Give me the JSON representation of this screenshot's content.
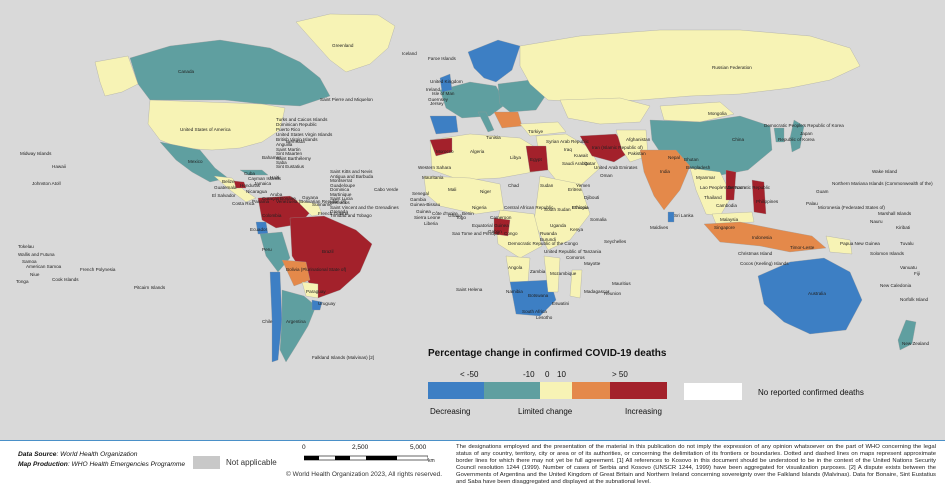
{
  "legend": {
    "title": "Percentage change in confirmed COVID-19 deaths",
    "ticks": [
      "< -50",
      "-10",
      "0",
      "10",
      "> 50"
    ],
    "categories": [
      "Decreasing",
      "Limited change",
      "Increasing"
    ],
    "no_report": "No reported confirmed deaths",
    "colors": {
      "strong_decrease": "#3d7fc4",
      "decrease": "#5f9fa0",
      "limited": "#f7f3b5",
      "increase": "#e4894a",
      "strong_increase": "#a3212b",
      "no_report": "#ffffff",
      "not_applicable": "#c8c8c8",
      "water": "#d9d9d9"
    }
  },
  "map_labels": [
    "Greenland",
    "Iceland",
    "Faroe Islands",
    "Russian Federation",
    "Canada",
    "United States of America",
    "Saint Pierre and Miquelon",
    "Bermuda",
    "Midway Islands",
    "Johnston Atoll",
    "Hawaii",
    "Mexico",
    "Bahamas",
    "Cuba",
    "Turks and Caicos Islands",
    "Dominican Republic",
    "Puerto Rico",
    "United States Virgin Islands",
    "British Virgin Islands",
    "Anguilla",
    "Saint Martin",
    "Sint Maarten",
    "Saint Barthélemy",
    "Saba",
    "Sint Eustatius",
    "Saint Kitts and Nevis",
    "Antigua and Barbuda",
    "Montserrat",
    "Guadeloupe",
    "Dominica",
    "Martinique",
    "Saint Lucia",
    "Barbados",
    "Saint Vincent and the Grenadines",
    "Grenada",
    "Trinidad and Tobago",
    "Aruba",
    "Curaçao",
    "Bonaire",
    "Cayman Islands",
    "Jamaica",
    "Haiti",
    "Belize",
    "Guatemala",
    "Honduras",
    "El Salvador",
    "Nicaragua",
    "Costa Rica",
    "Panama",
    "Venezuela (Bolivarian Republic of)",
    "Guyana",
    "Suriname",
    "French Guiana",
    "Colombia",
    "Ecuador",
    "Peru",
    "Brazil",
    "Bolivia (Plurinational State of)",
    "Paraguay",
    "Chile",
    "Argentina",
    "Uruguay",
    "Falkland Islands (Malvinas) [2]",
    "Pitcairn Islands",
    "French Polynesia",
    "Cook Islands",
    "Samoa",
    "American Samoa",
    "Niue",
    "Tonga",
    "Tokelau",
    "Wallis and Futuna",
    "Cabo Verde",
    "Senegal",
    "Gambia",
    "Guinea-Bissau",
    "Guinea",
    "Sierra Leone",
    "Liberia",
    "Côte d'Ivoire",
    "Ghana",
    "Togo",
    "Benin",
    "Nigeria",
    "Niger",
    "Mali",
    "Mauritania",
    "Western Sahara",
    "Morocco",
    "Algeria",
    "Tunisia",
    "Libya",
    "Egypt",
    "Sudan",
    "South Sudan",
    "Chad",
    "Central African Republic",
    "Cameroon",
    "Equatorial Guinea",
    "Gabon",
    "Congo",
    "Democratic Republic of the Congo",
    "Angola",
    "Zambia",
    "Namibia",
    "Botswana",
    "South Africa",
    "Lesotho",
    "Eswatini",
    "Mozambique",
    "Madagascar",
    "Mauritius",
    "Réunion",
    "Mayotte",
    "Comoros",
    "Seychelles",
    "United Republic of Tanzania",
    "Kenya",
    "Uganda",
    "Rwanda",
    "Burundi",
    "Ethiopia",
    "Somalia",
    "Eritrea",
    "Djibouti",
    "Sao Tome and Principe",
    "Saint Helena",
    "United Kingdom",
    "Ireland",
    "Isle of Man",
    "Guernsey",
    "Jersey",
    "Türkiye",
    "Syrian Arab Republic",
    "Iraq",
    "Iran (Islamic Republic of)",
    "Saudi Arabia",
    "Yemen",
    "Oman",
    "United Arab Emirates",
    "Qatar",
    "Kuwait",
    "Afghanistan",
    "Pakistan",
    "India",
    "Sri Lanka",
    "Maldives",
    "Nepal",
    "Bhutan",
    "Bangladesh",
    "Myanmar",
    "Lao People's Democratic Republic",
    "Thailand",
    "Viet Nam",
    "Cambodia",
    "Malaysia",
    "Singapore",
    "Indonesia",
    "Philippines",
    "Timor-Leste",
    "China",
    "Mongolia",
    "Republic of Korea",
    "Democratic People's Republic of Korea",
    "Japan",
    "Palau",
    "Micronesia (Federated States of)",
    "Guam",
    "Northern Mariana Islands (Commonwealth of the)",
    "Wake Island",
    "Marshall Islands",
    "Nauru",
    "Kiribati",
    "Tuvalu",
    "Papua New Guinea",
    "Solomon Islands",
    "Vanuatu",
    "Fiji",
    "New Caledonia",
    "Norfolk Island",
    "Australia",
    "New Zealand",
    "Cocos (Keeling) Islands",
    "Christmas Island",
    "Ethiopia"
  ],
  "footer": {
    "data_source_label": "Data Source",
    "data_source_value": ": World Health Organization",
    "map_production_label": "Map Production",
    "map_production_value": ": WHO Health Emergencies Programme",
    "not_applicable": "Not applicable",
    "scale": [
      "0",
      "2,500",
      "5,000"
    ],
    "scale_unit": "km",
    "copyright": "© World Health Organization 2023, All rights reserved.",
    "disclaimer": "The designations employed and the presentation of the material in this publication do not imply the expression of any opinion whatsoever on the part of WHO concerning the legal status of any country, territory, city or area or of its authorities, or concerning the delimitation of its frontiers or boundaries. Dotted and dashed lines on maps represent approximate border lines for which there may not yet be full agreement. [1] All references to Kosovo in this document should be understood to be in the context of the United Nations Security Council resolution 1244 (1999). Number of cases of Serbia and Kosovo (UNSCR 1244, 1999) have been aggregated for visualization purposes. [2] A dispute exists between the Governments of Argentina and the United Kingdom of Great Britain and Northern Ireland concerning sovereignty over the Falkland Islands (Malvinas). Data for Bonaire, Sint Eustatius and Saba have been disaggregated and displayed at the subnational level."
  }
}
